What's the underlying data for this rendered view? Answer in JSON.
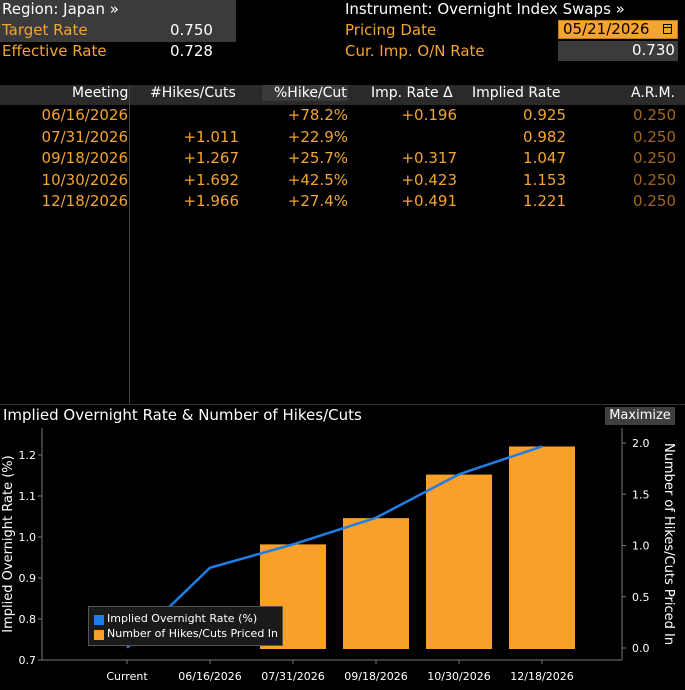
{
  "header": {
    "region_label": "Region: Japan »",
    "target_rate_label": "Target Rate",
    "target_rate_value": "0.750",
    "effective_rate_label": "Effective Rate",
    "effective_rate_value": "0.728",
    "instrument_label": "Instrument: Overnight Index Swaps »",
    "pricing_date_label": "Pricing Date",
    "pricing_date_value": "05/21/2026",
    "cur_imp_label": "Cur. Imp. O/N Rate",
    "cur_imp_value": "0.730"
  },
  "table": {
    "columns": [
      "Meeting",
      "#Hikes/Cuts",
      "%Hike/Cut",
      "Imp. Rate Δ",
      "Implied Rate",
      "A.R.M."
    ],
    "rows": [
      {
        "meeting": "06/16/2026",
        "hikes": "",
        "pct": "+78.2%",
        "delta": "+0.196",
        "implied": "0.925",
        "arm": "0.250"
      },
      {
        "meeting": "07/31/2026",
        "hikes": "+1.011",
        "pct": "+22.9%",
        "delta": "",
        "implied": "0.982",
        "arm": "0.250"
      },
      {
        "meeting": "09/18/2026",
        "hikes": "+1.267",
        "pct": "+25.7%",
        "delta": "+0.317",
        "implied": "1.047",
        "arm": "0.250"
      },
      {
        "meeting": "10/30/2026",
        "hikes": "+1.692",
        "pct": "+42.5%",
        "delta": "+0.423",
        "implied": "1.153",
        "arm": "0.250"
      },
      {
        "meeting": "12/18/2026",
        "hikes": "+1.966",
        "pct": "+27.4%",
        "delta": "+0.491",
        "implied": "1.221",
        "arm": "0.250"
      }
    ]
  },
  "chart": {
    "title": "Implied Overnight Rate & Number of Hikes/Cuts",
    "maximize_label": "Maximize"
  },
  "chart_data": {
    "type": "bar",
    "categories": [
      "Current",
      "06/16/2026",
      "07/31/2026",
      "09/18/2026",
      "10/30/2026",
      "12/18/2026"
    ],
    "series": [
      {
        "name": "Implied Overnight Rate (%)",
        "type": "line",
        "axis": "left",
        "values": [
          0.73,
          0.925,
          0.982,
          1.047,
          1.153,
          1.221
        ]
      },
      {
        "name": "Number of Hikes/Cuts Priced In",
        "type": "bar",
        "axis": "right",
        "values": [
          null,
          null,
          1.011,
          1.267,
          1.692,
          1.966
        ]
      }
    ],
    "ylabel": "Implied Overnight Rate (%)",
    "y2label": "Number of Hikes/Cuts Priced In",
    "ylim": [
      0.7,
      1.25
    ],
    "y2lim": [
      -0.05,
      2.05
    ],
    "yticks": [
      "0.7",
      "0.8",
      "0.9",
      "1.0",
      "1.1",
      "1.2"
    ],
    "y2ticks": [
      "0.0",
      "0.5",
      "1.0",
      "1.5",
      "2.0"
    ],
    "legend_position": "bottom-left",
    "colors": {
      "line": "#1e7ee8",
      "bar": "#f8a02a"
    }
  }
}
